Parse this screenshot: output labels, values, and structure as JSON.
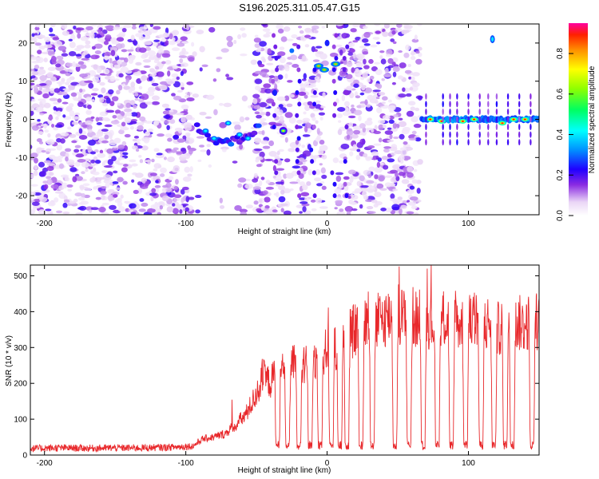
{
  "title": "S196.2025.311.05.47.G15",
  "chart_data": [
    {
      "type": "heatmap",
      "xlabel": "Height of straight line (km)",
      "ylabel": "Frequency (Hz)",
      "xlim": [
        -210,
        150
      ],
      "ylim": [
        -25,
        25
      ],
      "x_ticks": [
        -200,
        -100,
        0,
        100
      ],
      "y_ticks": [
        -20,
        -10,
        0,
        10,
        20
      ],
      "colorbar": {
        "label": "Normalized spectral amplitude",
        "range": [
          0,
          0.95
        ],
        "ticks": [
          0.0,
          0.2,
          0.4,
          0.6,
          0.8
        ]
      },
      "features": [
        {
          "description": "scattered weak noise",
          "x_range": [
            -210,
            65
          ],
          "y_range": [
            -25,
            25
          ],
          "amplitude": 0.1
        },
        {
          "description": "curving trace",
          "x_range": [
            -92,
            -48
          ],
          "y_range": [
            -8,
            0
          ],
          "amplitude": 0.3
        },
        {
          "description": "trace blob",
          "x_range": [
            -34,
            -28
          ],
          "y_range": [
            -5,
            -1
          ],
          "amplitude": 0.5
        },
        {
          "description": "trace blobs",
          "x_range": [
            -10,
            10
          ],
          "y_range": [
            12,
            16
          ],
          "amplitude": 0.6
        },
        {
          "description": "strong horizontal line",
          "x_range": [
            67,
            150
          ],
          "y_range": [
            -1,
            1
          ],
          "amplitude": 0.9
        },
        {
          "description": "blob",
          "x_range": [
            114,
            120
          ],
          "y_range": [
            19,
            23
          ],
          "amplitude": 0.3
        }
      ]
    },
    {
      "type": "line",
      "xlabel": "Height of straight line (km)",
      "ylabel": "SNR (10 * v/v)",
      "xlim": [
        -210,
        150
      ],
      "ylim": [
        0,
        530
      ],
      "x_ticks": [
        -200,
        -100,
        0,
        100
      ],
      "y_ticks": [
        0,
        100,
        200,
        300,
        400,
        500
      ],
      "series": [
        {
          "color": "#e8282b",
          "x": [
            -210,
            -190,
            -170,
            -150,
            -130,
            -110,
            -95,
            -88,
            -80,
            -72,
            -65,
            -58,
            -50,
            -45,
            -40,
            -35,
            -30,
            -25,
            -20,
            -15,
            -10,
            -5,
            0,
            5,
            10,
            15,
            20,
            25,
            30,
            35,
            40,
            45,
            50,
            55,
            60,
            65,
            70,
            75,
            80,
            85,
            90,
            95,
            100,
            105,
            110,
            115,
            120,
            125,
            130,
            135,
            140,
            145,
            150
          ],
          "values": [
            18,
            20,
            19,
            20,
            20,
            22,
            25,
            45,
            50,
            60,
            85,
            110,
            170,
            220,
            200,
            250,
            230,
            260,
            240,
            250,
            270,
            260,
            300,
            290,
            310,
            330,
            350,
            370,
            380,
            370,
            380,
            390,
            400,
            380,
            390,
            370,
            380,
            370,
            390,
            370,
            380,
            360,
            370,
            380,
            360,
            370,
            350,
            360,
            340,
            370,
            360,
            380,
            370
          ]
        }
      ],
      "dips_x": [
        -35,
        -28,
        -20,
        -12,
        -5,
        3,
        9,
        14,
        24,
        32,
        48,
        58,
        68,
        78,
        88,
        98,
        109,
        118,
        126,
        131,
        145
      ]
    }
  ]
}
